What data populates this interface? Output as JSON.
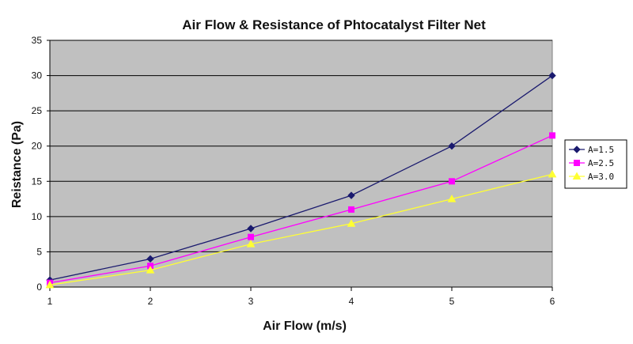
{
  "chart_data": {
    "type": "line",
    "title": "Air Flow & Resistance of Phtocatalyst Filter Net",
    "xlabel": "Air Flow (m/s)",
    "ylabel": "Reistance (Pa)",
    "x": [
      1,
      2,
      3,
      4,
      5,
      6
    ],
    "xlim": [
      1,
      6
    ],
    "ylim": [
      0,
      35
    ],
    "yticks": [
      0,
      5,
      10,
      15,
      20,
      25,
      30,
      35
    ],
    "grid": true,
    "legend_position": "right",
    "plot_background": "#c0c0c0",
    "series": [
      {
        "name": "A=1.5",
        "color": "#1a1a6e",
        "marker": "diamond",
        "values": [
          1,
          4,
          8.3,
          13,
          20,
          30
        ]
      },
      {
        "name": "A=2.5",
        "color": "#ff00ff",
        "marker": "square",
        "values": [
          0.6,
          3,
          7.1,
          11,
          15,
          21.5
        ]
      },
      {
        "name": "A=3.0",
        "color": "#ffff33",
        "marker": "triangle",
        "values": [
          0.3,
          2.4,
          6.1,
          9,
          12.5,
          16
        ]
      }
    ]
  }
}
